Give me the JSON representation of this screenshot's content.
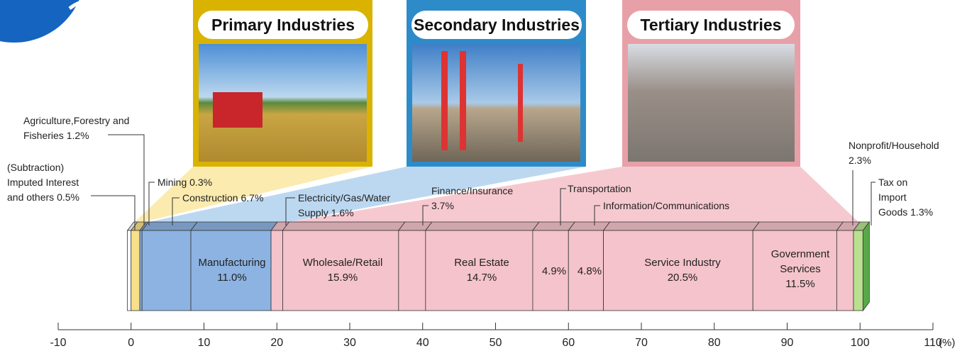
{
  "chart_data": {
    "type": "stacked-bar",
    "groups": [
      {
        "title": "Primary Industries"
      },
      {
        "title": "Secondary Industries"
      },
      {
        "title": "Tertiary Industries"
      }
    ],
    "categories": [
      "(Subtraction) Imputed Interest and others",
      "Agriculture,Forestry and Fisheries",
      "Mining",
      "Construction",
      "Manufacturing",
      "Electricity/Gas/Water Supply",
      "Wholesale/Retail",
      "Finance/Insurance",
      "Real Estate",
      "Transportation",
      "Information/Communications",
      "Service Industry",
      "Government Services",
      "Nonprofit/Household",
      "Tax on Import Goods"
    ],
    "values": [
      0.5,
      1.2,
      0.3,
      6.7,
      11.0,
      1.6,
      15.9,
      3.7,
      14.7,
      4.9,
      4.8,
      20.5,
      11.5,
      2.3,
      1.3
    ],
    "value_labels": [
      "0.5%",
      "1.2%",
      "0.3%",
      "6.7%",
      "11.0%",
      "1.6%",
      "15.9%",
      "3.7%",
      "14.7%",
      "4.9%",
      "4.8%",
      "20.5%",
      "11.5%",
      "2.3%",
      "1.3%"
    ],
    "colors": [
      "#ffffff",
      "#f8e08a",
      "#8db3e2",
      "#8db3e2",
      "#8db3e2",
      "#f5c3cb",
      "#f5c3cb",
      "#f5c3cb",
      "#f5c3cb",
      "#f5c3cb",
      "#f5c3cb",
      "#f5c3cb",
      "#f5c3cb",
      "#f5c3cb",
      "#b9e08f"
    ],
    "xlim": [
      -10,
      110
    ],
    "xticks": [
      -10,
      0,
      10,
      20,
      30,
      40,
      50,
      60,
      70,
      80,
      90,
      100,
      110
    ],
    "xlabel": "(%)"
  }
}
